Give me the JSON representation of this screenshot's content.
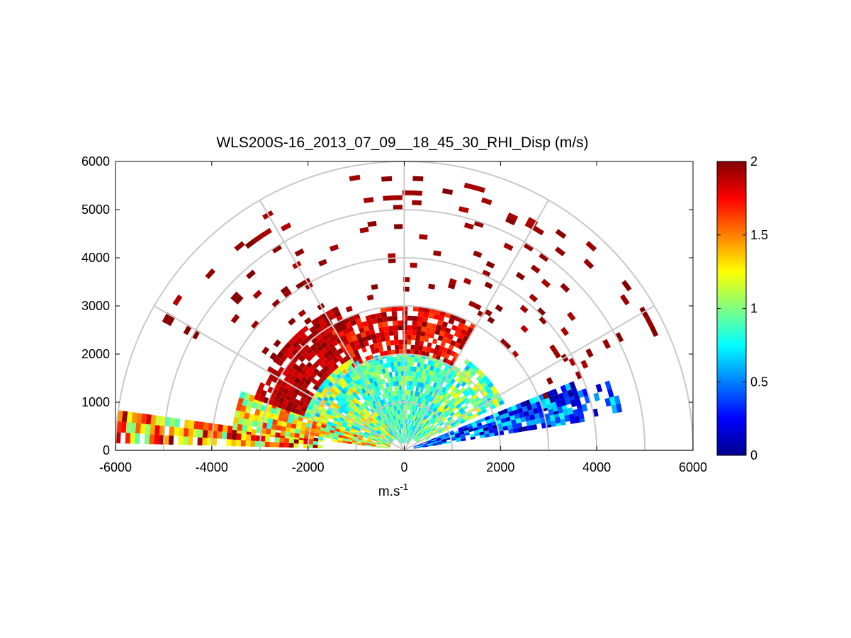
{
  "chart_data": {
    "type": "heatmap",
    "subtype": "polar-rhi-scan",
    "title": "WLS200S-16_2013_07_09__18_45_30_RHI_Disp (m/s)",
    "xlabel_base": "m.s",
    "xlabel_exponent": "-1",
    "ylabel": "",
    "xlim": [
      -6000,
      6000
    ],
    "ylim": [
      0,
      6000
    ],
    "x_ticks": [
      -6000,
      -4000,
      -2000,
      0,
      2000,
      4000,
      6000
    ],
    "y_ticks": [
      0,
      1000,
      2000,
      3000,
      4000,
      5000,
      6000
    ],
    "x_tick_labels": [
      "-6000",
      "-4000",
      "-2000",
      "0",
      "2000",
      "4000",
      "6000"
    ],
    "y_tick_labels": [
      "0",
      "1000",
      "2000",
      "3000",
      "4000",
      "5000",
      "6000"
    ],
    "polar_grid_radii": [
      1000,
      2000,
      3000,
      4000,
      5000,
      6000
    ],
    "polar_grid_angles_deg": [
      0,
      30,
      60,
      90,
      120,
      150,
      180
    ],
    "colorbar": {
      "min": 0,
      "max": 2,
      "ticks": [
        0,
        0.5,
        1,
        1.5,
        2
      ],
      "tick_labels": [
        "0",
        "0.5",
        "1",
        "1.5",
        "2"
      ],
      "colormap": "jet"
    },
    "sectors": [
      {
        "name": "far-left-low-beam",
        "angle_deg": [
          172,
          177
        ],
        "range": [
          1700,
          6000
        ],
        "value_range": [
          0.9,
          2.0
        ],
        "density": 0.9
      },
      {
        "name": "left-low-wedge",
        "angle_deg": [
          160,
          172
        ],
        "range": [
          300,
          3600
        ],
        "value_range": [
          0.8,
          1.7
        ],
        "density": 0.95
      },
      {
        "name": "left-mid-outer",
        "angle_deg": [
          115,
          160
        ],
        "range": [
          2200,
          3300
        ],
        "value_range": [
          1.8,
          2.0
        ],
        "density": 0.85
      },
      {
        "name": "left-mid-inner",
        "angle_deg": [
          115,
          160
        ],
        "range": [
          300,
          2200
        ],
        "value_range": [
          0.6,
          1.4
        ],
        "density": 0.95
      },
      {
        "name": "central-core",
        "angle_deg": [
          55,
          125
        ],
        "range": [
          150,
          2000
        ],
        "value_range": [
          0.6,
          1.1
        ],
        "density": 0.95
      },
      {
        "name": "central-upper-band",
        "angle_deg": [
          60,
          120
        ],
        "range": [
          2000,
          3000
        ],
        "value_range": [
          1.6,
          2.0
        ],
        "density": 0.8
      },
      {
        "name": "right-mid-wedge",
        "angle_deg": [
          25,
          55
        ],
        "range": [
          300,
          2300
        ],
        "value_range": [
          0.6,
          1.3
        ],
        "density": 0.85
      },
      {
        "name": "right-low-beam",
        "angle_deg": [
          9,
          20
        ],
        "range": [
          200,
          3800
        ],
        "value_range": [
          0.0,
          0.8
        ],
        "density": 0.9
      },
      {
        "name": "right-low-tail",
        "angle_deg": [
          10,
          18
        ],
        "range": [
          3000,
          4600
        ],
        "value_range": [
          0.1,
          0.8
        ],
        "density": 0.5
      },
      {
        "name": "scattered-high-red",
        "angle_deg": [
          20,
          150
        ],
        "range": [
          3000,
          5800
        ],
        "value_range": [
          1.9,
          2.0
        ],
        "density": 0.06
      }
    ],
    "annotations": []
  }
}
